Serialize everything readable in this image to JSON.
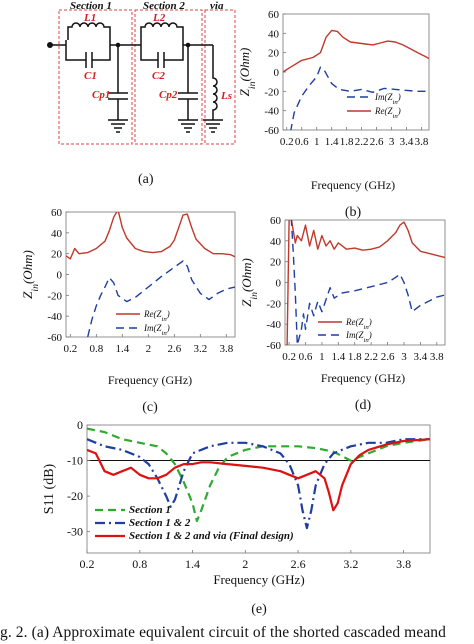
{
  "circuit": {
    "section1_label": "Section 1",
    "section2_label": "Section 2",
    "via_label": "via",
    "L1": "L1",
    "C1": "C1",
    "Cp1": "Cp1",
    "L2": "L2",
    "C2": "C2",
    "Cp2": "Cp2",
    "Ls": "Ls",
    "panel_label": "(a)",
    "colors": {
      "box": "#e04040",
      "component_label": "#d42020",
      "wire": "#111111"
    }
  },
  "caption": "g. 2.   (a) Approximate equivalent circuit of the shorted cascaded meand",
  "chart_data": [
    {
      "id": "b",
      "type": "line",
      "panel_label": "(b)",
      "xlabel": "Frequency (GHz)",
      "ylabel": "Zin(Ohm)",
      "xlim": [
        0.1,
        4.0
      ],
      "ylim": [
        -60,
        60
      ],
      "xticks": [
        0.2,
        0.6,
        1.0,
        1.4,
        1.8,
        2.2,
        2.6,
        3.0,
        3.4,
        3.8
      ],
      "yticks": [
        -60,
        -40,
        -20,
        0,
        20,
        40,
        60
      ],
      "legend": {
        "position": "bottom-right",
        "order": [
          "Im",
          "Re"
        ]
      },
      "series": [
        {
          "key": "Re",
          "name": "Re(Zin)",
          "color": "#c0392b",
          "dash": "solid",
          "x": [
            0.1,
            0.3,
            0.6,
            0.9,
            1.1,
            1.25,
            1.4,
            1.55,
            1.7,
            1.9,
            2.1,
            2.3,
            2.5,
            2.7,
            2.9,
            3.1,
            3.3,
            3.5,
            3.7,
            3.9,
            4.0
          ],
          "y": [
            0,
            5,
            12,
            15,
            20,
            36,
            43,
            42,
            36,
            31,
            30,
            29,
            28,
            30,
            32,
            31,
            28,
            24,
            20,
            16,
            14
          ]
        },
        {
          "key": "Im",
          "name": "Im(Zin)",
          "color": "#1f3fa0",
          "dash": "dash",
          "x": [
            0.3,
            0.4,
            0.6,
            0.8,
            1.0,
            1.1,
            1.2,
            1.4,
            1.6,
            1.9,
            2.2,
            2.5,
            2.8,
            3.1,
            3.4,
            3.7,
            4.0
          ],
          "y": [
            -62,
            -42,
            -25,
            -14,
            -5,
            5,
            2,
            -12,
            -18,
            -20,
            -18,
            -21,
            -17,
            -18,
            -19,
            -20,
            -20
          ]
        }
      ]
    },
    {
      "id": "c",
      "type": "line",
      "panel_label": "(c)",
      "xlabel": "Frequency (GHz)",
      "ylabel": "Zin(Ohm)",
      "xlim": [
        0.1,
        4.0
      ],
      "ylim": [
        -60,
        60
      ],
      "xticks": [
        0.2,
        0.8,
        1.4,
        2.0,
        2.6,
        3.2,
        3.8
      ],
      "yticks": [
        -60,
        -40,
        -20,
        0,
        20,
        40,
        60
      ],
      "legend": {
        "position": "bottom-left",
        "order": [
          "Re",
          "Im"
        ]
      },
      "series": [
        {
          "key": "Re",
          "name": "Re(Zin)",
          "color": "#c0392b",
          "dash": "solid",
          "x": [
            0.1,
            0.2,
            0.3,
            0.4,
            0.6,
            0.8,
            1.0,
            1.1,
            1.2,
            1.3,
            1.4,
            1.5,
            1.7,
            1.9,
            2.1,
            2.3,
            2.5,
            2.6,
            2.7,
            2.8,
            2.9,
            3.0,
            3.1,
            3.3,
            3.5,
            3.7,
            3.9,
            4.0
          ],
          "y": [
            18,
            15,
            25,
            20,
            21,
            25,
            32,
            42,
            55,
            62,
            45,
            35,
            25,
            22,
            21,
            22,
            27,
            33,
            45,
            57,
            58,
            45,
            34,
            25,
            20,
            20,
            19,
            17
          ]
        },
        {
          "key": "Im",
          "name": "Im(Zin)",
          "color": "#1f3fa0",
          "dash": "dash",
          "x": [
            0.6,
            0.7,
            0.8,
            0.9,
            1.0,
            1.1,
            1.2,
            1.3,
            1.5,
            1.7,
            2.0,
            2.3,
            2.6,
            2.8,
            2.9,
            3.0,
            3.2,
            3.4,
            3.6,
            3.8,
            4.0
          ],
          "y": [
            -60,
            -43,
            -30,
            -20,
            -12,
            -3,
            -8,
            -20,
            -26,
            -22,
            -12,
            -2,
            7,
            13,
            8,
            -5,
            -18,
            -24,
            -18,
            -14,
            -12
          ]
        }
      ]
    },
    {
      "id": "d",
      "type": "line",
      "panel_label": "(d)",
      "xlabel": "Frequency (GHz)",
      "ylabel": "Zin(Ohm)",
      "xlim": [
        0.1,
        4.0
      ],
      "ylim": [
        -60,
        60
      ],
      "xticks": [
        0.2,
        0.6,
        1.0,
        1.4,
        1.8,
        2.2,
        2.6,
        3.0,
        3.4,
        3.8
      ],
      "yticks": [
        -60,
        -40,
        -20,
        0,
        20,
        40,
        60
      ],
      "legend": {
        "position": "bottom-center",
        "order": [
          "Re",
          "Im"
        ]
      },
      "series": [
        {
          "key": "Re",
          "name": "Re(Zin)",
          "color": "#c0392b",
          "dash": "solid",
          "x": [
            0.15,
            0.2,
            0.25,
            0.3,
            0.35,
            0.4,
            0.5,
            0.6,
            0.7,
            0.8,
            0.9,
            1.0,
            1.1,
            1.2,
            1.3,
            1.4,
            1.6,
            1.8,
            2.0,
            2.2,
            2.4,
            2.6,
            2.8,
            2.9,
            3.0,
            3.1,
            3.2,
            3.4,
            3.6,
            3.8,
            4.0
          ],
          "y": [
            -60,
            60,
            62,
            50,
            38,
            45,
            40,
            55,
            35,
            50,
            32,
            45,
            35,
            40,
            32,
            38,
            32,
            33,
            31,
            32,
            34,
            40,
            48,
            55,
            58,
            50,
            38,
            30,
            28,
            26,
            24
          ]
        },
        {
          "key": "Im",
          "name": "Im(Zin)",
          "color": "#1f3fa0",
          "dash": "dash",
          "x": [
            0.25,
            0.3,
            0.35,
            0.4,
            0.5,
            0.55,
            0.6,
            0.7,
            0.8,
            0.9,
            1.0,
            1.2,
            1.3,
            1.5,
            1.8,
            2.1,
            2.4,
            2.6,
            2.8,
            2.9,
            3.0,
            3.1,
            3.2,
            3.4,
            3.6,
            3.8,
            4.0
          ],
          "y": [
            62,
            30,
            -10,
            -60,
            -45,
            -30,
            -45,
            -20,
            -32,
            -18,
            -28,
            -5,
            -15,
            -10,
            -8,
            -5,
            -2,
            0,
            5,
            8,
            0,
            -12,
            -28,
            -22,
            -18,
            -14,
            -12
          ]
        }
      ]
    },
    {
      "id": "e",
      "type": "line",
      "panel_label": "(e)",
      "xlabel": "Frequency (GHz)",
      "ylabel": "S11 (dB)",
      "xlim": [
        0.2,
        4.1
      ],
      "ylim": [
        -36,
        0
      ],
      "xticks": [
        0.2,
        0.8,
        1.4,
        2.0,
        2.6,
        3.2,
        3.8
      ],
      "yticks": [
        0,
        -10,
        -20,
        -30
      ],
      "reference_line": -10,
      "legend": {
        "position": "bottom-left",
        "order": [
          "s1",
          "s12",
          "full"
        ]
      },
      "series": [
        {
          "key": "s1",
          "name": "Section 1",
          "color": "#2eab2e",
          "dash": "dash",
          "x": [
            0.2,
            0.4,
            0.6,
            0.8,
            1.0,
            1.1,
            1.2,
            1.3,
            1.4,
            1.45,
            1.5,
            1.6,
            1.7,
            1.8,
            2.0,
            2.2,
            2.4,
            2.6,
            2.8,
            3.0,
            3.2,
            3.4,
            3.6,
            3.8,
            4.1
          ],
          "y": [
            -1,
            -2,
            -4,
            -5,
            -6,
            -8,
            -11,
            -16,
            -22,
            -27,
            -24,
            -17,
            -12,
            -9,
            -7,
            -6,
            -6,
            -6,
            -6.5,
            -7.5,
            -10,
            -8,
            -6,
            -5,
            -4
          ]
        },
        {
          "key": "s12",
          "name": "Section 1 & 2",
          "color": "#1f3fa0",
          "dash": "dashdot",
          "x": [
            0.2,
            0.4,
            0.6,
            0.8,
            0.9,
            1.0,
            1.1,
            1.15,
            1.2,
            1.3,
            1.4,
            1.6,
            1.8,
            2.0,
            2.2,
            2.4,
            2.5,
            2.6,
            2.65,
            2.7,
            2.75,
            2.8,
            2.9,
            3.0,
            3.2,
            3.4,
            3.6,
            3.8,
            4.1
          ],
          "y": [
            -4,
            -6,
            -7,
            -9,
            -11,
            -15,
            -20,
            -23,
            -21,
            -13,
            -8,
            -6,
            -5,
            -5,
            -6,
            -8,
            -11,
            -17,
            -24,
            -29,
            -24,
            -17,
            -11,
            -8,
            -6,
            -5,
            -5,
            -4,
            -4
          ]
        },
        {
          "key": "full",
          "name": "Section 1 & 2 and via (Final design)",
          "color": "#dd1111",
          "dash": "solid",
          "x": [
            0.2,
            0.3,
            0.4,
            0.5,
            0.6,
            0.7,
            0.8,
            0.9,
            1.0,
            1.1,
            1.2,
            1.3,
            1.4,
            1.5,
            1.6,
            1.8,
            2.0,
            2.2,
            2.4,
            2.5,
            2.6,
            2.7,
            2.8,
            2.9,
            2.95,
            3.0,
            3.05,
            3.1,
            3.2,
            3.3,
            3.4,
            3.6,
            3.8,
            4.1
          ],
          "y": [
            -7,
            -8,
            -13,
            -14,
            -13,
            -12,
            -14,
            -15,
            -15,
            -14,
            -12,
            -11,
            -11,
            -10.5,
            -10.5,
            -11,
            -11.5,
            -12,
            -13,
            -14,
            -15,
            -14,
            -13,
            -15,
            -19,
            -24,
            -22,
            -17,
            -11,
            -8.5,
            -7,
            -5.5,
            -4.5,
            -4
          ]
        }
      ]
    }
  ]
}
